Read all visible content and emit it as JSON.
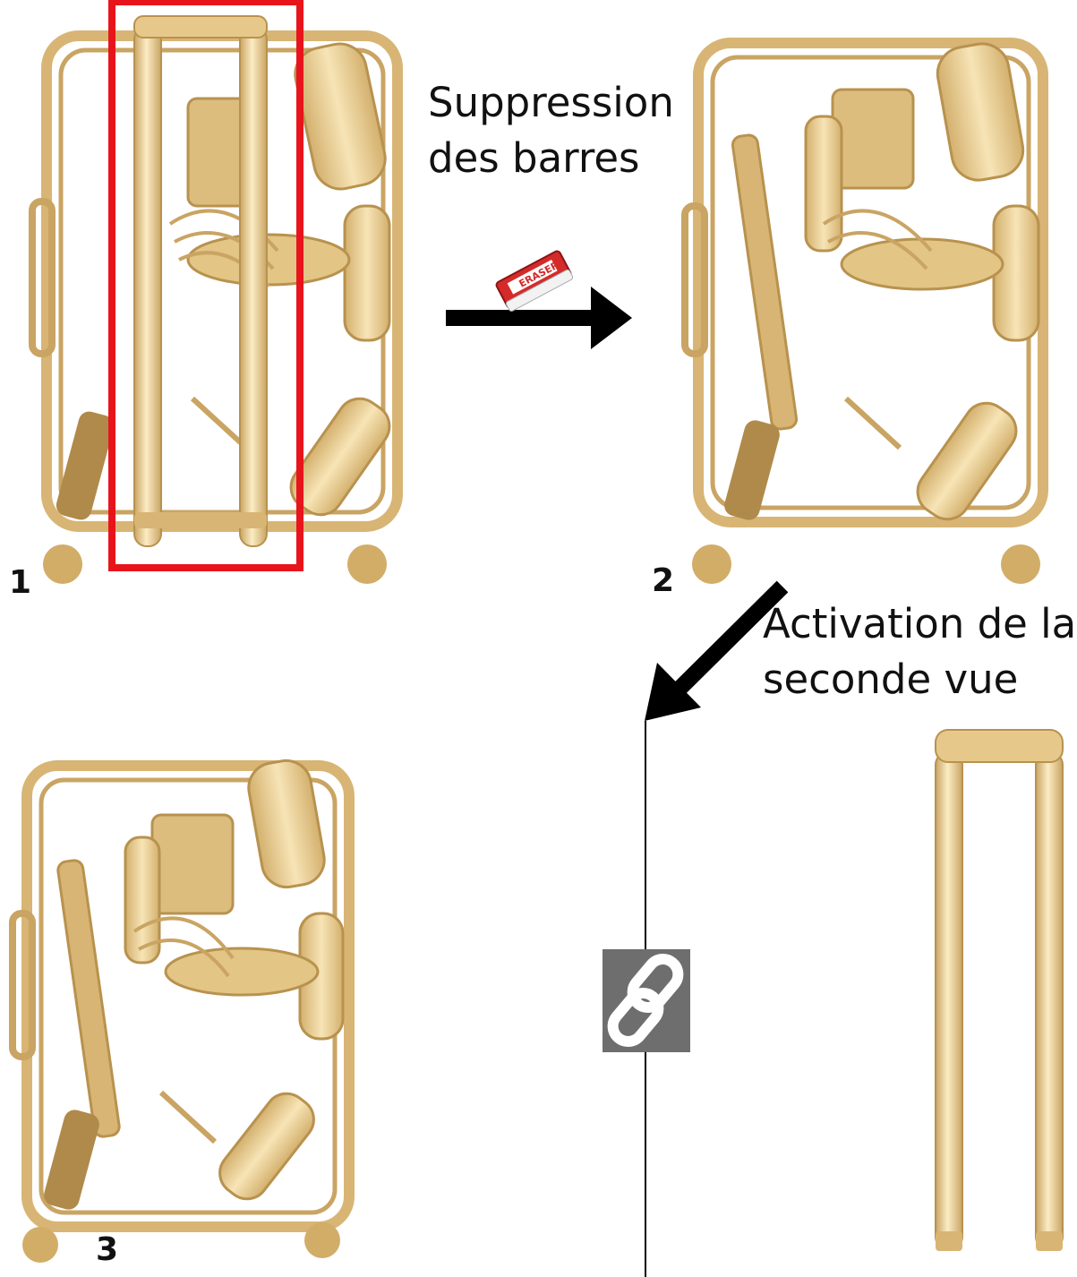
{
  "steps": [
    {
      "number": "1"
    },
    {
      "number": "2"
    },
    {
      "number": "3"
    }
  ],
  "captions": {
    "remove_bars_line1": "Suppression",
    "remove_bars_line2": "des barres",
    "activate_view_line1": "Activation de la",
    "activate_view_line2": "seconde vue"
  },
  "eraser": {
    "label": "ERASER",
    "color": "#d42a2a"
  },
  "colors": {
    "luggage": "#e6c98a",
    "luggage_dark": "#b8924e",
    "highlight_box": "#e8141c",
    "arrow": "#000000",
    "link_badge": "#6e6e6e"
  },
  "icons": {
    "link": "chain-link-icon",
    "eraser": "eraser-icon"
  }
}
